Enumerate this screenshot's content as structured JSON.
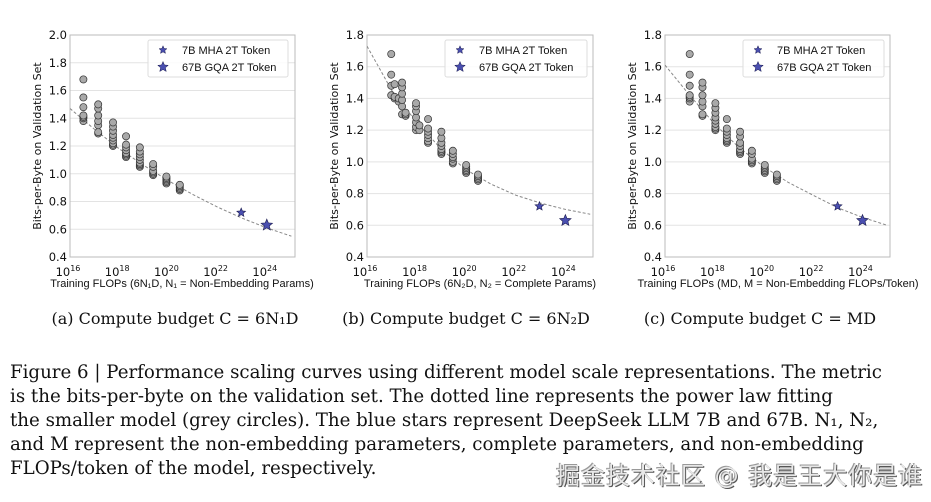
{
  "chart_data": [
    {
      "type": "scatter",
      "ylabel": "Bits-per-Byte on Validation Set",
      "xlabel": "Training FLOPs (6N₁D, N₁ = Non-Embedding Params)",
      "xscale": "log",
      "xlim": [
        1e+16,
        1.4e+25
      ],
      "ylim": [
        0.4,
        2.0
      ],
      "yticks": [
        "0.4",
        "0.6",
        "0.8",
        "1.0",
        "1.2",
        "1.4",
        "1.6",
        "1.8",
        "2.0"
      ],
      "xticks": [
        "16",
        "18",
        "20",
        "22",
        "24"
      ],
      "grid": "horizontal",
      "legend": {
        "placement": "top-right",
        "entries": [
          "7B MHA 2T Token",
          "67B GQA 2T Token"
        ]
      },
      "series": [
        {
          "marker": "grey-circle",
          "clusters": [
            {
              "x": 3.5e+16,
              "y": [
                1.38,
                1.4,
                1.41,
                1.42,
                1.48,
                1.55,
                1.68
              ]
            },
            {
              "x": 1.4e+17,
              "y": [
                1.29,
                1.3,
                1.35,
                1.38,
                1.42,
                1.47,
                1.5
              ]
            },
            {
              "x": 5.6e+17,
              "y": [
                1.2,
                1.21,
                1.22,
                1.24,
                1.26,
                1.28,
                1.31,
                1.34,
                1.37
              ]
            },
            {
              "x": 1.9e+18,
              "y": [
                1.12,
                1.13,
                1.14,
                1.15,
                1.17,
                1.19,
                1.21,
                1.27
              ]
            },
            {
              "x": 6.9e+18,
              "y": [
                1.05,
                1.06,
                1.07,
                1.08,
                1.1,
                1.12,
                1.14,
                1.16,
                1.19
              ]
            },
            {
              "x": 2.4e+19,
              "y": [
                0.99,
                1.0,
                1.01,
                1.02,
                1.05,
                1.07
              ]
            },
            {
              "x": 8.3e+19,
              "y": [
                0.93,
                0.94,
                0.95,
                0.96,
                0.97,
                0.98
              ]
            },
            {
              "x": 2.9e+20,
              "y": [
                0.88,
                0.89,
                0.9,
                0.91,
                0.92
              ]
            }
          ]
        },
        {
          "name": "7B MHA 2T Token",
          "marker": "small-star",
          "x": 9.1e+22,
          "y": 0.72
        },
        {
          "name": "67B GQA 2T Token",
          "marker": "large-star",
          "x": 1e+24,
          "y": 0.63
        }
      ],
      "fit_line": {
        "style": "dashed",
        "x": [
          1e+16,
          1e+17,
          1e+18,
          1e+19,
          1e+20,
          1e+21,
          1e+22,
          1e+23,
          1e+24,
          1e+25
        ],
        "y": [
          1.47,
          1.32,
          1.18,
          1.06,
          0.95,
          0.85,
          0.76,
          0.68,
          0.61,
          0.55
        ]
      }
    },
    {
      "type": "scatter",
      "ylabel": "Bits-per-Byte on Validation Set",
      "xlabel": "Training FLOPs (6N₂D, N₂ = Complete Params)",
      "xscale": "log",
      "xlim": [
        1e+16,
        1.3e+25
      ],
      "ylim": [
        0.4,
        1.8
      ],
      "yticks": [
        "0.4",
        "0.6",
        "0.8",
        "1.0",
        "1.2",
        "1.4",
        "1.6",
        "1.8"
      ],
      "xticks": [
        "16",
        "18",
        "20",
        "22",
        "24"
      ],
      "grid": "horizontal",
      "legend": {
        "placement": "top-right",
        "entries": [
          "7B MHA 2T Token",
          "67B GQA 2T Token"
        ]
      },
      "series": [
        {
          "marker": "grey-circle",
          "clusters": [
            {
              "x": 9.5e+16,
              "y": [
                1.42,
                1.48,
                1.55,
                1.68
              ]
            },
            {
              "x": 1.3e+17,
              "y": [
                1.4,
                1.41,
                1.49
              ]
            },
            {
              "x": 1.9e+17,
              "y": [
                1.38,
                1.4
              ]
            },
            {
              "x": 2.6e+17,
              "y": [
                1.3,
                1.35,
                1.39,
                1.43,
                1.47,
                1.5
              ]
            },
            {
              "x": 3.6e+17,
              "y": [
                1.29,
                1.3,
                1.31
              ]
            },
            {
              "x": 9.5e+17,
              "y": [
                1.2,
                1.22,
                1.25,
                1.28,
                1.32,
                1.35,
                1.37
              ]
            },
            {
              "x": 1.3e+18,
              "y": [
                1.2,
                1.23
              ]
            },
            {
              "x": 2.9e+18,
              "y": [
                1.12,
                1.13,
                1.15,
                1.17,
                1.19,
                1.21,
                1.27
              ]
            },
            {
              "x": 1e+19,
              "y": [
                1.05,
                1.06,
                1.07,
                1.08,
                1.1,
                1.12,
                1.15,
                1.19
              ]
            },
            {
              "x": 2.9e+19,
              "y": [
                0.99,
                1.0,
                1.02,
                1.03,
                1.05,
                1.07
              ]
            },
            {
              "x": 1e+20,
              "y": [
                0.93,
                0.94,
                0.95,
                0.96,
                0.97,
                0.98
              ]
            },
            {
              "x": 3e+20,
              "y": [
                0.88,
                0.89,
                0.9,
                0.91,
                0.92
              ]
            }
          ]
        },
        {
          "name": "7B MHA 2T Token",
          "marker": "small-star",
          "x": 9e+22,
          "y": 0.72
        },
        {
          "name": "67B GQA 2T Token",
          "marker": "large-star",
          "x": 1e+24,
          "y": 0.63
        }
      ],
      "fit_line": {
        "style": "dashed",
        "x": [
          1e+16,
          1e+17,
          1e+18,
          1e+19,
          1e+20,
          1e+21,
          1e+22,
          1e+23,
          1e+24,
          1e+25
        ],
        "y": [
          1.73,
          1.45,
          1.25,
          1.08,
          0.95,
          0.86,
          0.79,
          0.74,
          0.7,
          0.67
        ]
      }
    },
    {
      "type": "scatter",
      "ylabel": "Bits-per-Byte on Validation Set",
      "xlabel": "Training FLOPs (MD, M = Non-Embedding FLOPs/Token)",
      "xscale": "log",
      "xlim": [
        1e+16,
        1.3e+25
      ],
      "ylim": [
        0.4,
        1.8
      ],
      "yticks": [
        "0.4",
        "0.6",
        "0.8",
        "1.0",
        "1.2",
        "1.4",
        "1.6",
        "1.8"
      ],
      "xticks": [
        "16",
        "18",
        "20",
        "22",
        "24"
      ],
      "grid": "horizontal",
      "legend": {
        "placement": "top-right",
        "entries": [
          "7B MHA 2T Token",
          "67B GQA 2T Token"
        ]
      },
      "series": [
        {
          "marker": "grey-circle",
          "clusters": [
            {
              "x": 1e+17,
              "y": [
                1.38,
                1.4,
                1.41,
                1.42,
                1.48,
                1.55,
                1.68
              ]
            },
            {
              "x": 3.3e+17,
              "y": [
                1.29,
                1.3,
                1.35,
                1.38,
                1.42,
                1.47,
                1.5
              ]
            },
            {
              "x": 1.1e+18,
              "y": [
                1.2,
                1.21,
                1.22,
                1.24,
                1.26,
                1.28,
                1.31,
                1.34,
                1.37
              ]
            },
            {
              "x": 3.2e+18,
              "y": [
                1.12,
                1.13,
                1.14,
                1.15,
                1.17,
                1.19,
                1.21,
                1.27
              ]
            },
            {
              "x": 1.1e+19,
              "y": [
                1.05,
                1.06,
                1.07,
                1.08,
                1.1,
                1.12,
                1.16,
                1.19
              ]
            },
            {
              "x": 3.3e+19,
              "y": [
                0.99,
                1.0,
                1.01,
                1.02,
                1.05,
                1.07
              ]
            },
            {
              "x": 1.1e+20,
              "y": [
                0.93,
                0.94,
                0.95,
                0.96,
                0.97,
                0.98
              ]
            },
            {
              "x": 3.4e+20,
              "y": [
                0.88,
                0.89,
                0.9,
                0.91,
                0.92
              ]
            }
          ]
        },
        {
          "name": "7B MHA 2T Token",
          "marker": "small-star",
          "x": 9.8e+22,
          "y": 0.72
        },
        {
          "name": "67B GQA 2T Token",
          "marker": "large-star",
          "x": 1e+24,
          "y": 0.63
        }
      ],
      "fit_line": {
        "style": "dashed",
        "x": [
          1e+16,
          1e+17,
          1e+18,
          1e+19,
          1e+20,
          1e+21,
          1e+22,
          1e+23,
          1e+24,
          1e+25
        ],
        "y": [
          1.61,
          1.42,
          1.24,
          1.09,
          0.97,
          0.87,
          0.79,
          0.71,
          0.65,
          0.6
        ]
      }
    }
  ],
  "colors": {
    "circle_fill": "#a9a9a9",
    "circle_stroke": "#333333",
    "star_fill": "#4a4fb0",
    "star_stroke": "#1c1c50",
    "grid": "#e3e3e3",
    "fit_line": "#888888"
  },
  "subcaptions": [
    "(a) Compute budget C = 6N₁D",
    "(b) Compute budget C = 6N₂D",
    "(c) Compute budget C = MD"
  ],
  "caption": {
    "lines": [
      "Figure 6 | Performance scaling curves using different model scale representations. The metric",
      "is the bits-per-byte on the validation set.  The dotted line represents the power law fitting",
      "the smaller model (grey circles). The blue stars represent DeepSeek LLM 7B and 67B. N₁, N₂,",
      "and M represent the non-embedding parameters, complete parameters, and non-embedding",
      "FLOPs/token of the model, respectively."
    ]
  },
  "watermark": "掘金技术社区 @ 我是王大你是谁"
}
